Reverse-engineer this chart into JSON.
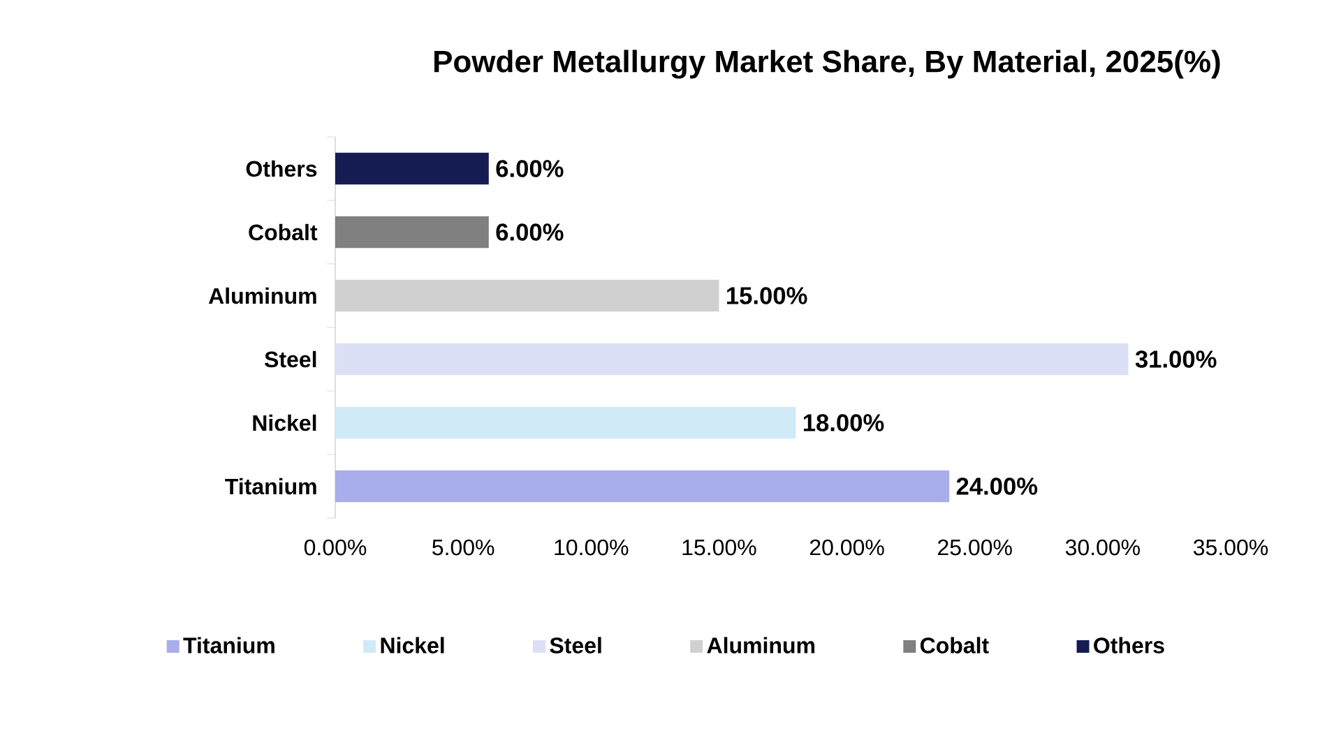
{
  "chart_data": {
    "type": "bar",
    "orientation": "horizontal",
    "stacked": true,
    "title": "Powder Metallurgy Market Share, By Material, 2025(%)",
    "categories": [
      "Others",
      "Cobalt",
      "Aluminum",
      "Steel",
      "Nickel",
      "Titanium"
    ],
    "series": [
      {
        "name": "Titanium",
        "color": "#a8aeea",
        "values": [
          null,
          null,
          null,
          null,
          null,
          24
        ],
        "value_labels": [
          null,
          null,
          null,
          null,
          null,
          "24.00%"
        ]
      },
      {
        "name": "Nickel",
        "color": "#d0eaf8",
        "values": [
          null,
          null,
          null,
          null,
          18,
          null
        ],
        "value_labels": [
          null,
          null,
          null,
          null,
          "18.00%",
          null
        ]
      },
      {
        "name": "Steel",
        "color": "#dce0f7",
        "values": [
          null,
          null,
          null,
          31,
          null,
          null
        ],
        "value_labels": [
          null,
          null,
          null,
          "31.00%",
          null,
          null
        ]
      },
      {
        "name": "Aluminum",
        "color": "#d0d0d0",
        "values": [
          null,
          null,
          15,
          null,
          null,
          null
        ],
        "value_labels": [
          null,
          null,
          "15.00%",
          null,
          null,
          null
        ]
      },
      {
        "name": "Cobalt",
        "color": "#808080",
        "values": [
          null,
          6,
          null,
          null,
          null,
          null
        ],
        "value_labels": [
          null,
          "6.00%",
          null,
          null,
          null,
          null
        ]
      },
      {
        "name": "Others",
        "color": "#141c52",
        "values": [
          6,
          null,
          null,
          null,
          null,
          null
        ],
        "value_labels": [
          "6.00%",
          null,
          null,
          null,
          null,
          null
        ]
      }
    ],
    "xlim": [
      0,
      35
    ],
    "xticks": [
      {
        "value": 0,
        "label": "0.00%"
      },
      {
        "value": 5,
        "label": "5.00%"
      },
      {
        "value": 10,
        "label": "10.00%"
      },
      {
        "value": 15,
        "label": "15.00%"
      },
      {
        "value": 20,
        "label": "20.00%"
      },
      {
        "value": 25,
        "label": "25.00%"
      },
      {
        "value": 30,
        "label": "30.00%"
      },
      {
        "value": 35,
        "label": "35.00%"
      }
    ],
    "legend": "bottom"
  }
}
